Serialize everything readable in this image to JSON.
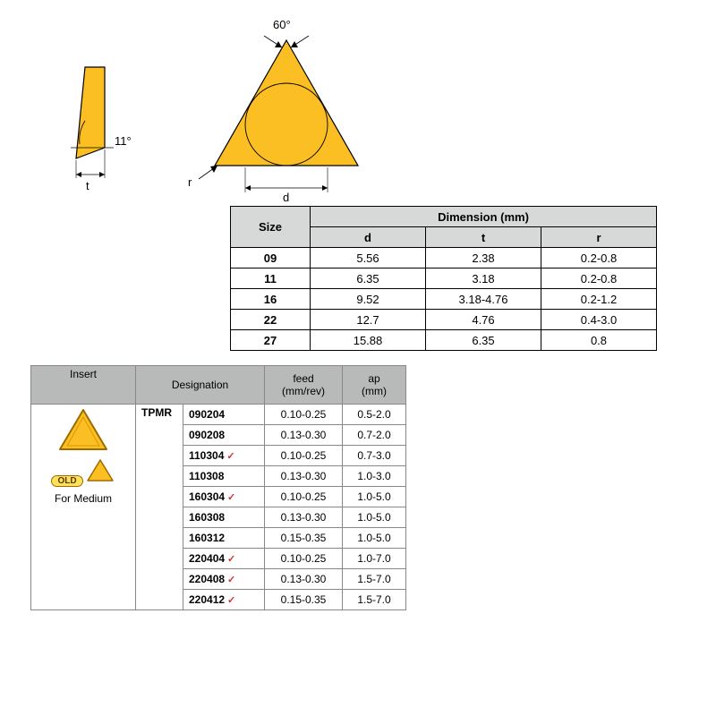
{
  "diagram": {
    "angle_top": "60°",
    "angle_side": "11°",
    "label_t": "t",
    "label_r": "r",
    "label_d": "d",
    "fill_color": "#fbbf24",
    "stroke_color": "#000000"
  },
  "size_table": {
    "header_size": "Size",
    "header_dim": "Dimension (mm)",
    "header_d": "d",
    "header_t": "t",
    "header_r": "r",
    "rows": [
      {
        "size": "09",
        "d": "5.56",
        "t": "2.38",
        "r": "0.2-0.8"
      },
      {
        "size": "11",
        "d": "6.35",
        "t": "3.18",
        "r": "0.2-0.8"
      },
      {
        "size": "16",
        "d": "9.52",
        "t": "3.18-4.76",
        "r": "0.2-1.2"
      },
      {
        "size": "22",
        "d": "12.7",
        "t": "4.76",
        "r": "0.4-3.0"
      },
      {
        "size": "27",
        "d": "15.88",
        "t": "6.35",
        "r": "0.8"
      }
    ]
  },
  "insert_table": {
    "header_insert": "Insert",
    "header_designation": "Designation",
    "header_feed": "feed\n(mm/rev)",
    "header_ap": "ap\n(mm)",
    "type_label": "TPMR",
    "old_badge": "OLD",
    "caption": "For Medium",
    "rows": [
      {
        "desig": "090204",
        "check": false,
        "feed": "0.10-0.25",
        "ap": "0.5-2.0"
      },
      {
        "desig": "090208",
        "check": false,
        "feed": "0.13-0.30",
        "ap": "0.7-2.0"
      },
      {
        "desig": "110304",
        "check": true,
        "feed": "0.10-0.25",
        "ap": "0.7-3.0"
      },
      {
        "desig": "110308",
        "check": false,
        "feed": "0.13-0.30",
        "ap": "1.0-3.0"
      },
      {
        "desig": "160304",
        "check": true,
        "feed": "0.10-0.25",
        "ap": "1.0-5.0"
      },
      {
        "desig": "160308",
        "check": false,
        "feed": "0.13-0.30",
        "ap": "1.0-5.0"
      },
      {
        "desig": "160312",
        "check": false,
        "feed": "0.15-0.35",
        "ap": "1.0-5.0"
      },
      {
        "desig": "220404",
        "check": true,
        "feed": "0.10-0.25",
        "ap": "1.0-7.0"
      },
      {
        "desig": "220408",
        "check": true,
        "feed": "0.13-0.30",
        "ap": "1.5-7.0"
      },
      {
        "desig": "220412",
        "check": true,
        "feed": "0.15-0.35",
        "ap": "1.5-7.0"
      }
    ]
  }
}
